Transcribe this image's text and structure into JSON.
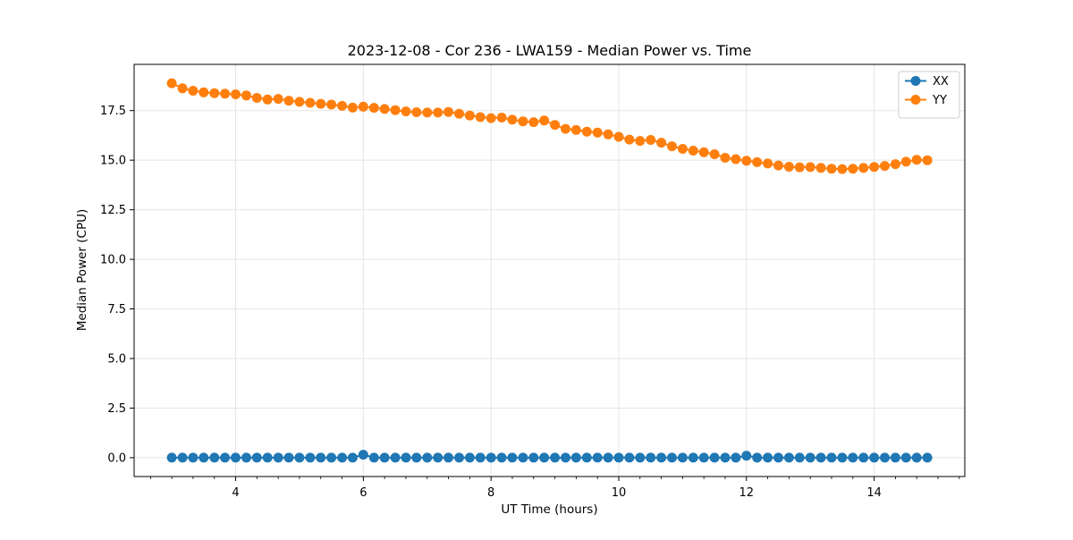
{
  "figure": {
    "background": "#ffffff",
    "spine_color": "#000000",
    "grid_color": "#e5e5e5",
    "text_color": "#000000"
  },
  "legend": {
    "items": [
      {
        "label": "XX",
        "color": "#1f77b4"
      },
      {
        "label": "YY",
        "color": "#ff7f0e"
      }
    ],
    "border_color": "#cccccc",
    "background": "#ffffff"
  },
  "chart_data": {
    "type": "line",
    "title": "2023-12-08 - Cor 236 - LWA159 - Median Power vs. Time",
    "xlabel": "UT Time (hours)",
    "ylabel": "Median Power (CPU)",
    "xlim": [
      2.41,
      15.42
    ],
    "ylim": [
      -0.95,
      19.83
    ],
    "xticks": [
      4,
      6,
      8,
      10,
      12,
      14
    ],
    "xtick_labels": [
      "4",
      "6",
      "8",
      "10",
      "12",
      "14"
    ],
    "x_minor_step": 0.33333,
    "yticks": [
      0.0,
      2.5,
      5.0,
      7.5,
      10.0,
      12.5,
      15.0,
      17.5
    ],
    "ytick_labels": [
      "0.0",
      "2.5",
      "5.0",
      "7.5",
      "10.0",
      "12.5",
      "15.0",
      "17.5"
    ],
    "grid": true,
    "legend_position": "upper right",
    "x": [
      3.0,
      3.167,
      3.333,
      3.5,
      3.667,
      3.833,
      4.0,
      4.167,
      4.333,
      4.5,
      4.667,
      4.833,
      5.0,
      5.167,
      5.333,
      5.5,
      5.667,
      5.833,
      6.0,
      6.167,
      6.333,
      6.5,
      6.667,
      6.833,
      7.0,
      7.167,
      7.333,
      7.5,
      7.667,
      7.833,
      8.0,
      8.167,
      8.333,
      8.5,
      8.667,
      8.833,
      9.0,
      9.167,
      9.333,
      9.5,
      9.667,
      9.833,
      10.0,
      10.167,
      10.333,
      10.5,
      10.667,
      10.833,
      11.0,
      11.167,
      11.333,
      11.5,
      11.667,
      11.833,
      12.0,
      12.167,
      12.333,
      12.5,
      12.667,
      12.833,
      13.0,
      13.167,
      13.333,
      13.5,
      13.667,
      13.833,
      14.0,
      14.167,
      14.333,
      14.5,
      14.667,
      14.833
    ],
    "series": [
      {
        "name": "XX",
        "color": "#1f77b4",
        "values": [
          0.0,
          0.0,
          0.0,
          0.0,
          0.0,
          0.0,
          0.0,
          0.0,
          0.0,
          0.0,
          0.0,
          0.0,
          0.0,
          0.0,
          0.0,
          0.0,
          0.0,
          0.0,
          0.15,
          0.0,
          0.0,
          0.0,
          0.0,
          0.0,
          0.0,
          0.0,
          0.0,
          0.0,
          0.0,
          0.0,
          0.0,
          0.0,
          0.0,
          0.0,
          0.0,
          0.0,
          0.0,
          0.0,
          0.0,
          0.0,
          0.0,
          0.0,
          0.0,
          0.0,
          0.0,
          0.0,
          0.0,
          0.0,
          0.0,
          0.0,
          0.0,
          0.0,
          0.0,
          0.0,
          0.1,
          0.0,
          0.0,
          0.0,
          0.0,
          0.0,
          0.0,
          0.0,
          0.0,
          0.0,
          0.0,
          0.0,
          0.0,
          0.0,
          0.0,
          0.0,
          0.0,
          0.0
        ]
      },
      {
        "name": "YY",
        "color": "#ff7f0e",
        "values": [
          18.88,
          18.62,
          18.5,
          18.42,
          18.38,
          18.35,
          18.32,
          18.26,
          18.14,
          18.06,
          18.09,
          18.0,
          17.94,
          17.89,
          17.84,
          17.8,
          17.74,
          17.65,
          17.7,
          17.64,
          17.58,
          17.52,
          17.46,
          17.42,
          17.4,
          17.4,
          17.43,
          17.34,
          17.25,
          17.17,
          17.12,
          17.15,
          17.04,
          16.96,
          16.92,
          17.0,
          16.78,
          16.58,
          16.52,
          16.44,
          16.39,
          16.3,
          16.18,
          16.04,
          15.97,
          16.02,
          15.88,
          15.7,
          15.57,
          15.48,
          15.4,
          15.3,
          15.12,
          15.05,
          14.97,
          14.9,
          14.83,
          14.73,
          14.67,
          14.64,
          14.65,
          14.61,
          14.57,
          14.55,
          14.57,
          14.61,
          14.66,
          14.71,
          14.8,
          14.92,
          15.02,
          15.0
        ]
      }
    ]
  }
}
